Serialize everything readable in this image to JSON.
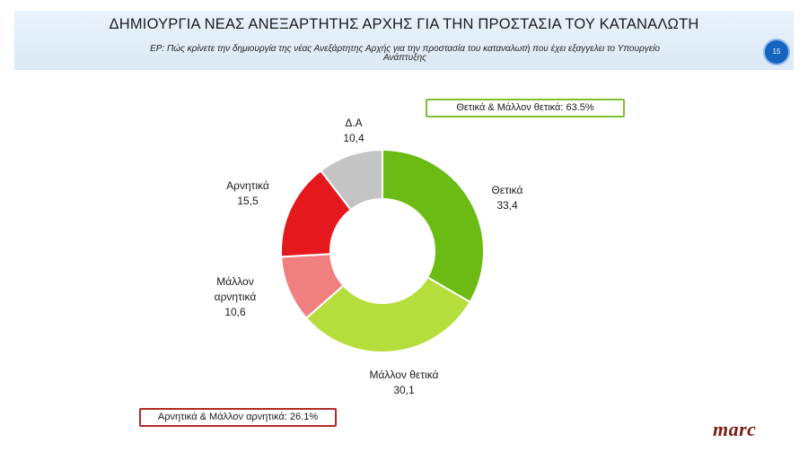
{
  "header": {
    "title": "ΔΗΜΙΟΥΡΓΙΑ ΝΕΑΣ ΑΝΕΞΑΡΤΗΤΗΣ ΑΡΧΗΣ ΓΙΑ ΤΗΝ ΠΡΟΣΤΑΣΙΑ ΤΟΥ ΚΑΤΑΝΑΛΩΤΗ",
    "question_line1": "ΕΡ: Πώς κρίνετε την δημιουργία της νέας Ανεξάρτητης Αρχής για την προστασία του καταναλωτή που έχει εξαγγελει το Υπουργείο",
    "question_line2": "Ανάπτυξης",
    "page_number": "15"
  },
  "summaries": {
    "positive": "Θετικά & Μάλλον θετικά: 63.5%",
    "negative": "Αρνητικά & Μάλλον αρνητικά: 26.1%"
  },
  "logo": "marc",
  "chart_data": {
    "type": "pie",
    "variant": "donut",
    "title": "",
    "slices": [
      {
        "label": "Θετικά",
        "value": 33.4,
        "value_label": "33,4",
        "color": "#6cbb14"
      },
      {
        "label": "Μάλλον θετικά",
        "value": 30.1,
        "value_label": "30,1",
        "color": "#b5dd3c"
      },
      {
        "label": "Μάλλον αρνητικά",
        "value": 10.6,
        "value_label": "10,6",
        "color": "#f08080"
      },
      {
        "label": "Αρνητικά",
        "value": 15.5,
        "value_label": "15,5",
        "color": "#e5191d"
      },
      {
        "label": "Δ.Α",
        "value": 10.4,
        "value_label": "10,4",
        "color": "#c4c4c4"
      }
    ]
  }
}
